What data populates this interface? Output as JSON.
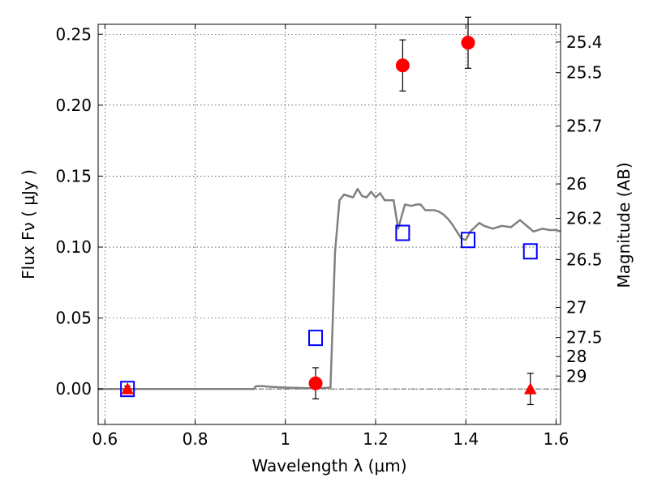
{
  "chart_data": {
    "type": "scatter",
    "xlabel": "Wavelength  λ (μm)",
    "ylabel": "Flux  Fν  ( μJy )",
    "ylabel_right": "Magnitude (AB)",
    "xlim": [
      0.585,
      1.61
    ],
    "ylim": [
      -0.025,
      0.257
    ],
    "grid": true,
    "x_ticks": [
      {
        "value": 0.6,
        "label": "0.6"
      },
      {
        "value": 0.8,
        "label": "0.8"
      },
      {
        "value": 1.0,
        "label": "1"
      },
      {
        "value": 1.2,
        "label": "1.2"
      },
      {
        "value": 1.4,
        "label": "1.4"
      },
      {
        "value": 1.6,
        "label": "1.6"
      }
    ],
    "y_ticks": [
      {
        "value": 0.0,
        "label": "0.00"
      },
      {
        "value": 0.05,
        "label": "0.05"
      },
      {
        "value": 0.1,
        "label": "0.10"
      },
      {
        "value": 0.15,
        "label": "0.15"
      },
      {
        "value": 0.2,
        "label": "0.20"
      },
      {
        "value": 0.25,
        "label": "0.25"
      }
    ],
    "right_ticks": [
      {
        "flux": 0.2445,
        "label": "25.4"
      },
      {
        "flux": 0.2229,
        "label": "25.5"
      },
      {
        "flux": 0.1853,
        "label": "25.7"
      },
      {
        "flux": 0.1445,
        "label": "26"
      },
      {
        "flux": 0.1202,
        "label": "26.2"
      },
      {
        "flux": 0.0912,
        "label": "26.5"
      },
      {
        "flux": 0.0575,
        "label": "27"
      },
      {
        "flux": 0.0363,
        "label": "27.5"
      },
      {
        "flux": 0.0229,
        "label": "28"
      },
      {
        "flux": 0.0091,
        "label": "29"
      }
    ],
    "model_sed": {
      "color": "#808080",
      "x": [
        0.585,
        0.93,
        0.935,
        0.95,
        0.97,
        1.0,
        1.05,
        1.08,
        1.1,
        1.11,
        1.12,
        1.13,
        1.14,
        1.15,
        1.16,
        1.17,
        1.18,
        1.19,
        1.2,
        1.21,
        1.22,
        1.23,
        1.24,
        1.25,
        1.265,
        1.28,
        1.29,
        1.3,
        1.31,
        1.32,
        1.33,
        1.34,
        1.35,
        1.36,
        1.37,
        1.38,
        1.39,
        1.4,
        1.41,
        1.42,
        1.43,
        1.44,
        1.45,
        1.46,
        1.47,
        1.48,
        1.5,
        1.52,
        1.535,
        1.55,
        1.57,
        1.585,
        1.6,
        1.61
      ],
      "y": [
        0.0,
        0.0,
        0.002,
        0.002,
        0.0015,
        0.001,
        0.0005,
        0.0005,
        0.001,
        0.0965,
        0.133,
        0.137,
        0.136,
        0.135,
        0.141,
        0.136,
        0.135,
        0.139,
        0.135,
        0.138,
        0.133,
        0.133,
        0.133,
        0.113,
        0.13,
        0.129,
        0.13,
        0.13,
        0.126,
        0.126,
        0.126,
        0.125,
        0.123,
        0.12,
        0.116,
        0.111,
        0.106,
        0.105,
        0.111,
        0.114,
        0.117,
        0.115,
        0.114,
        0.113,
        0.114,
        0.115,
        0.114,
        0.119,
        0.115,
        0.111,
        0.113,
        0.112,
        0.112,
        0.111
      ]
    },
    "observed": {
      "color": "#ff0000",
      "points": [
        {
          "x": 0.65,
          "y": 0.0,
          "err": 0.002,
          "marker": "triangle"
        },
        {
          "x": 1.067,
          "y": 0.004,
          "err": 0.011,
          "marker": "circle"
        },
        {
          "x": 1.26,
          "y": 0.228,
          "err": 0.018,
          "marker": "circle"
        },
        {
          "x": 1.405,
          "y": 0.244,
          "err": 0.018,
          "marker": "circle"
        },
        {
          "x": 1.543,
          "y": 0.0,
          "err": 0.011,
          "marker": "triangle"
        }
      ]
    },
    "model_photometry": {
      "color": "#0000ff",
      "points": [
        {
          "x": 0.65,
          "y": 0.0
        },
        {
          "x": 1.067,
          "y": 0.036
        },
        {
          "x": 1.26,
          "y": 0.11
        },
        {
          "x": 1.405,
          "y": 0.105
        },
        {
          "x": 1.543,
          "y": 0.097
        }
      ]
    }
  }
}
